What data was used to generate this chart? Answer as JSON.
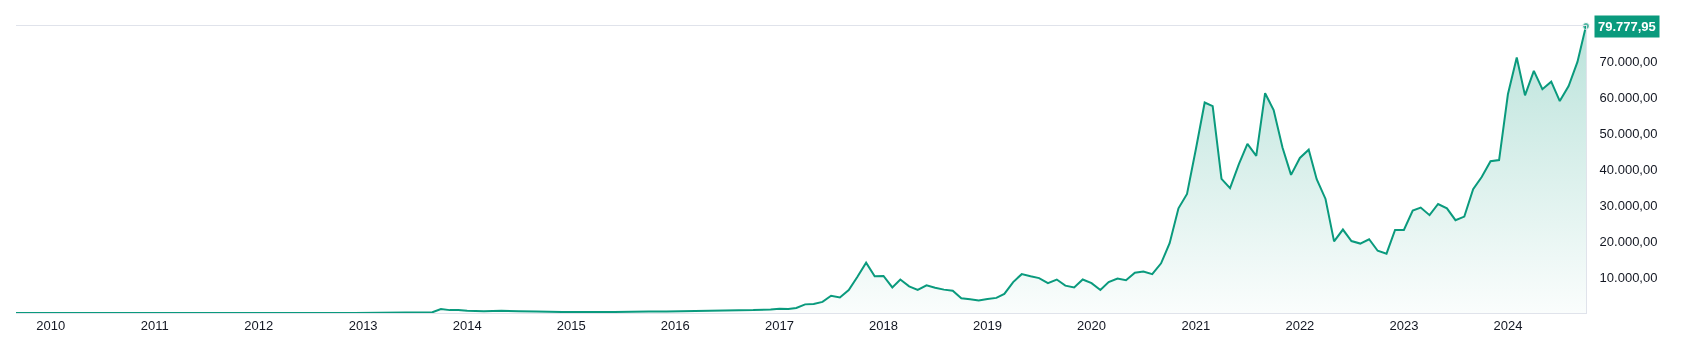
{
  "chart_data": {
    "type": "area",
    "x": [
      "2009-09",
      "2012-12",
      "2013-03",
      "2013-09",
      "2013-10",
      "2013-11",
      "2013-12",
      "2014-01",
      "2014-03",
      "2014-05",
      "2014-07",
      "2014-09",
      "2014-12",
      "2015-06",
      "2015-10",
      "2015-12",
      "2016-05",
      "2016-10",
      "2016-12",
      "2017-01",
      "2017-02",
      "2017-03",
      "2017-04",
      "2017-05",
      "2017-06",
      "2017-07",
      "2017-08",
      "2017-09",
      "2017-10",
      "2017-11",
      "2017-12",
      "2018-01",
      "2018-02",
      "2018-03",
      "2018-04",
      "2018-05",
      "2018-06",
      "2018-07",
      "2018-08",
      "2018-09",
      "2018-10",
      "2018-11",
      "2018-12",
      "2019-01",
      "2019-02",
      "2019-03",
      "2019-04",
      "2019-05",
      "2019-06",
      "2019-07",
      "2019-08",
      "2019-09",
      "2019-10",
      "2019-11",
      "2019-12",
      "2020-01",
      "2020-02",
      "2020-03",
      "2020-04",
      "2020-05",
      "2020-06",
      "2020-07",
      "2020-08",
      "2020-09",
      "2020-10",
      "2020-11",
      "2020-12",
      "2021-01",
      "2021-02",
      "2021-03",
      "2021-04",
      "2021-05",
      "2021-06",
      "2021-07",
      "2021-08",
      "2021-09",
      "2021-10",
      "2021-11",
      "2021-12",
      "2022-01",
      "2022-02",
      "2022-03",
      "2022-04",
      "2022-05",
      "2022-06",
      "2022-07",
      "2022-08",
      "2022-09",
      "2022-10",
      "2022-11",
      "2022-12",
      "2023-01",
      "2023-02",
      "2023-03",
      "2023-04",
      "2023-05",
      "2023-06",
      "2023-07",
      "2023-08",
      "2023-09",
      "2023-10",
      "2023-11",
      "2023-12",
      "2024-01",
      "2024-02",
      "2024-03",
      "2024-04",
      "2024-05",
      "2024-06",
      "2024-07",
      "2024-08",
      "2024-09",
      "2024-10"
    ],
    "series": [
      {
        "color": "#0a9a7d",
        "values": [
          0,
          0,
          100,
          200,
          1100,
          800,
          800,
          600,
          500,
          600,
          500,
          400,
          300,
          300,
          400,
          400,
          600,
          800,
          1000,
          1200,
          1100,
          1400,
          2400,
          2500,
          3100,
          4800,
          4300,
          6400,
          10000,
          14000,
          10200,
          10300,
          7100,
          9300,
          7400,
          6400,
          7700,
          7000,
          6500,
          6200,
          4100,
          3800,
          3500,
          3900,
          4200,
          5300,
          8600,
          10800,
          10200,
          9700,
          8300,
          9300,
          7600,
          7100,
          9300,
          8300,
          6400,
          8600,
          9600,
          9100,
          11200,
          11500,
          10800,
          13800,
          19400,
          29100,
          33100,
          45500,
          58500,
          57500,
          37300,
          34700,
          41400,
          47000,
          43700,
          61100,
          56400,
          46000,
          38400,
          43100,
          45400,
          37200,
          31700,
          19900,
          23200,
          20000,
          19300,
          20500,
          17300,
          16500,
          23100,
          23100,
          28500,
          29300,
          27200,
          30300,
          29100,
          25800,
          26800,
          34400,
          37800,
          42200,
          42500,
          60800,
          71000,
          60500,
          67300,
          62200,
          64300,
          58900,
          63100,
          69800,
          79777.95
        ],
        "value_labels": [
          null,
          null,
          null,
          null,
          null,
          null,
          null,
          null,
          null,
          null,
          null,
          null,
          null,
          null,
          null,
          null,
          null,
          null,
          null,
          null,
          null,
          null,
          null,
          null,
          null,
          null,
          null,
          null,
          null,
          null,
          null,
          null,
          null,
          null,
          null,
          null,
          null,
          null,
          null,
          null,
          null,
          null,
          null,
          null,
          null,
          null,
          null,
          null,
          null,
          null,
          null,
          null,
          null,
          null,
          null,
          null,
          null,
          null,
          null,
          null,
          null,
          null,
          null,
          null,
          null,
          null,
          null,
          null,
          null,
          null,
          null,
          null,
          null,
          null,
          null,
          null,
          null,
          null,
          null,
          null,
          null,
          null,
          null,
          null,
          null,
          null,
          null,
          null,
          null,
          null,
          null,
          null,
          null,
          null,
          null,
          null,
          null,
          null,
          null,
          null,
          null,
          null,
          null,
          null,
          null,
          null,
          null,
          null,
          null,
          null,
          null,
          null,
          "79.777,95"
        ]
      }
    ],
    "xlim": [
      "2009-09",
      "2024-10"
    ],
    "ylim": [
      0,
      79777.95
    ],
    "xticks": [
      "2010",
      "2011",
      "2012",
      "2013",
      "2014",
      "2015",
      "2016",
      "2017",
      "2018",
      "2019",
      "2020",
      "2021",
      "2022",
      "2023",
      "2024"
    ],
    "yticks": [
      {
        "value": 10000,
        "label": "10.000,00"
      },
      {
        "value": 20000,
        "label": "20.000,00"
      },
      {
        "value": 30000,
        "label": "30.000,00"
      },
      {
        "value": 40000,
        "label": "40.000,00"
      },
      {
        "value": 50000,
        "label": "50.000,00"
      },
      {
        "value": 60000,
        "label": "60.000,00"
      },
      {
        "value": 70000,
        "label": "70.000,00"
      }
    ],
    "line_style": "solid"
  }
}
